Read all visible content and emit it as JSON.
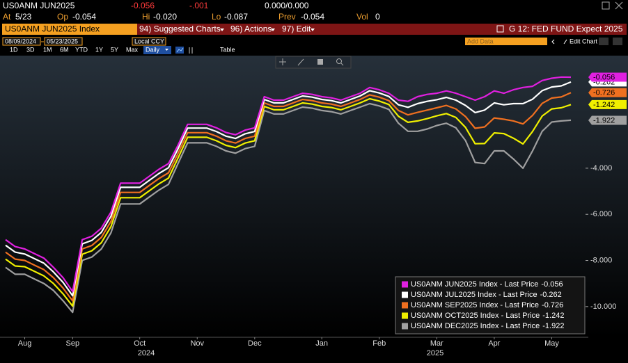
{
  "header": {
    "ticker": "US0ANM JUN2025",
    "last": "-0.056",
    "change": "-.001",
    "bidask": "0.000/0.000",
    "at_label": "At",
    "at": "5/23",
    "op_label": "Op",
    "op": "-0.054",
    "hi_label": "Hi",
    "hi": "-0.020",
    "lo_label": "Lo",
    "lo": "-0.087",
    "prev_label": "Prev",
    "prev": "-0.054",
    "vol_label": "Vol",
    "vol": "0"
  },
  "toolbar": {
    "security": "US0ANM JUN2025 Index",
    "menus": [
      "94) Suggested Charts",
      "96) Actions",
      "97) Edit"
    ],
    "chart_id": "G 12: FED FUND Expect 2025",
    "start_date": "08/09/2024",
    "end_date": "05/23/2025",
    "currency": "Local CCY",
    "add_data": "Add Data",
    "edit_chart": "Edit Chart",
    "periods": [
      "1D",
      "3D",
      "1M",
      "6M",
      "YTD",
      "1Y",
      "5Y",
      "Max"
    ],
    "frequency": "Daily",
    "table": "Table"
  },
  "chart_data": {
    "type": "line",
    "categories": [
      null,
      null,
      "Aug",
      null,
      null,
      null,
      null,
      "Sep",
      null,
      null,
      null,
      null,
      null,
      null,
      "Oct",
      null,
      null,
      null,
      null,
      null,
      "Nov",
      null,
      null,
      null,
      null,
      null,
      "Dec",
      null,
      null,
      null,
      null,
      null,
      null,
      "Jan",
      null,
      null,
      null,
      null,
      null,
      "Feb",
      null,
      null,
      null,
      null,
      null,
      "Mar",
      null,
      null,
      null,
      null,
      null,
      "Apr",
      null,
      null,
      null,
      null,
      null,
      "May",
      null,
      null
    ],
    "year_labels": [
      "2024",
      "2025"
    ],
    "ylim": [
      -11.33,
      0.88
    ],
    "yticks": [
      {
        "value": -10,
        "label": "-10.000"
      },
      {
        "value": -8,
        "label": "-8.000"
      },
      {
        "value": -6,
        "label": "-6.000"
      },
      {
        "value": -4,
        "label": "-4.000"
      }
    ],
    "series": [
      {
        "name": "US0ANM JUN2025 Index - Last Price",
        "color": "#e020e0",
        "values": [
          -7.1,
          -7.4,
          -7.5,
          -7.7,
          -7.9,
          -8.3,
          -8.75,
          -9.35,
          -7.1,
          -6.95,
          -6.6,
          -5.9,
          -4.65,
          -4.65,
          -4.65,
          -4.35,
          -4.05,
          -3.8,
          -3.0,
          -2.1,
          -2.1,
          -2.1,
          -2.25,
          -2.45,
          -2.55,
          -2.35,
          -2.25,
          -0.9,
          -1.05,
          -1.05,
          -0.9,
          -0.75,
          -0.8,
          -0.9,
          -0.95,
          -1.05,
          -0.9,
          -0.75,
          -0.5,
          -0.6,
          -0.75,
          -1.05,
          -1.1,
          -0.9,
          -0.8,
          -0.75,
          -0.65,
          -0.75,
          -0.9,
          -1.05,
          -0.9,
          -0.65,
          -0.75,
          -0.6,
          -0.5,
          -0.45,
          -0.2,
          -0.1,
          -0.05,
          -0.056
        ]
      },
      {
        "name": "US0ANM JUL2025 Index - Last Price",
        "color": "#ffffff",
        "values": [
          -7.34,
          -7.64,
          -7.72,
          -7.92,
          -8.12,
          -8.5,
          -8.95,
          -9.53,
          -7.28,
          -7.13,
          -6.78,
          -6.08,
          -4.83,
          -4.83,
          -4.83,
          -4.53,
          -4.23,
          -3.98,
          -3.16,
          -2.26,
          -2.26,
          -2.26,
          -2.41,
          -2.61,
          -2.71,
          -2.51,
          -2.41,
          -1.02,
          -1.17,
          -1.17,
          -1.02,
          -0.87,
          -0.92,
          -1.02,
          -1.07,
          -1.17,
          -1.02,
          -0.87,
          -0.64,
          -0.74,
          -0.89,
          -1.25,
          -1.36,
          -1.2,
          -1.1,
          -1.03,
          -0.93,
          -1.05,
          -1.28,
          -1.59,
          -1.48,
          -1.17,
          -1.25,
          -1.2,
          -1.2,
          -1.01,
          -0.64,
          -0.48,
          -0.43,
          -0.262
        ]
      },
      {
        "name": "US0ANM SEP2025 Index - Last Price",
        "color": "#f07020",
        "values": [
          -7.64,
          -7.94,
          -8.0,
          -8.2,
          -8.4,
          -8.75,
          -9.2,
          -9.75,
          -7.5,
          -7.35,
          -7.0,
          -6.3,
          -5.05,
          -5.05,
          -5.05,
          -4.75,
          -4.45,
          -4.2,
          -3.36,
          -2.46,
          -2.46,
          -2.46,
          -2.61,
          -2.81,
          -2.91,
          -2.71,
          -2.61,
          -1.17,
          -1.32,
          -1.32,
          -1.17,
          -1.02,
          -1.07,
          -1.17,
          -1.22,
          -1.32,
          -1.17,
          -1.02,
          -0.82,
          -0.92,
          -1.07,
          -1.5,
          -1.69,
          -1.58,
          -1.48,
          -1.38,
          -1.28,
          -1.43,
          -1.76,
          -2.27,
          -2.21,
          -1.82,
          -1.88,
          -1.95,
          -2.08,
          -1.71,
          -1.19,
          -0.96,
          -0.91,
          -0.726
        ]
      },
      {
        "name": "US0ANM OCT2025 Index - Last Price",
        "color": "#f0f000",
        "values": [
          -7.94,
          -8.24,
          -8.27,
          -8.47,
          -8.67,
          -9.0,
          -9.45,
          -9.98,
          -7.73,
          -7.58,
          -7.23,
          -6.53,
          -5.28,
          -5.28,
          -5.28,
          -4.98,
          -4.68,
          -4.43,
          -3.56,
          -2.66,
          -2.66,
          -2.66,
          -2.81,
          -3.01,
          -3.11,
          -2.91,
          -2.81,
          -1.32,
          -1.47,
          -1.47,
          -1.32,
          -1.17,
          -1.22,
          -1.32,
          -1.37,
          -1.47,
          -1.32,
          -1.17,
          -0.99,
          -1.09,
          -1.24,
          -1.75,
          -2.01,
          -1.95,
          -1.85,
          -1.73,
          -1.63,
          -1.8,
          -2.23,
          -2.94,
          -2.93,
          -2.47,
          -2.5,
          -2.7,
          -2.95,
          -2.41,
          -1.74,
          -1.43,
          -1.38,
          -1.242
        ]
      },
      {
        "name": "US0ANM DEC2025 Index - Last Price",
        "color": "#a0a0a0",
        "values": [
          -8.3,
          -8.6,
          -8.6,
          -8.8,
          -9.0,
          -9.3,
          -9.75,
          -10.25,
          -8.0,
          -7.85,
          -7.5,
          -6.8,
          -5.55,
          -5.55,
          -5.55,
          -5.25,
          -4.95,
          -4.7,
          -3.8,
          -2.9,
          -2.9,
          -2.9,
          -3.05,
          -3.25,
          -3.35,
          -3.15,
          -3.05,
          -1.5,
          -1.65,
          -1.65,
          -1.5,
          -1.35,
          -1.4,
          -1.5,
          -1.55,
          -1.65,
          -1.5,
          -1.35,
          -1.2,
          -1.3,
          -1.45,
          -2.05,
          -2.4,
          -2.4,
          -2.3,
          -2.15,
          -2.05,
          -2.25,
          -2.8,
          -3.75,
          -3.8,
          -3.25,
          -3.25,
          -3.6,
          -4.0,
          -3.25,
          -2.4,
          -2.0,
          -1.95,
          -1.922
        ]
      }
    ],
    "legend": "bottom-right",
    "grid": false
  }
}
